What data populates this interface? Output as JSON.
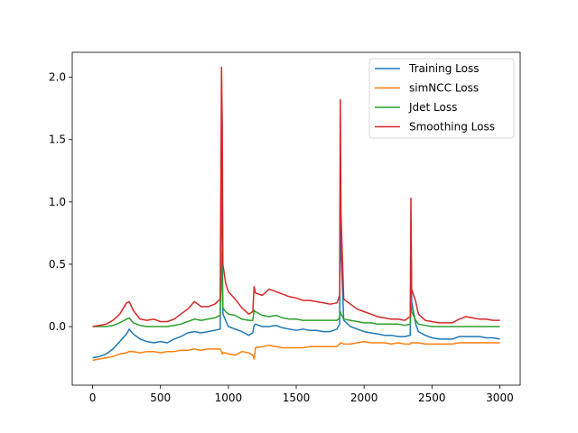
{
  "chart_data": {
    "type": "line",
    "title": "",
    "xlabel": "",
    "ylabel": "",
    "xlim": [
      -150,
      3150
    ],
    "ylim": [
      -0.47,
      2.2
    ],
    "xticks": [
      0,
      500,
      1000,
      1500,
      2000,
      2500,
      3000
    ],
    "xtick_labels": [
      "0",
      "500",
      "1000",
      "1500",
      "2000",
      "2500",
      "3000"
    ],
    "yticks": [
      0.0,
      0.5,
      1.0,
      1.5,
      2.0
    ],
    "ytick_labels": [
      "0.0",
      "0.5",
      "1.0",
      "1.5",
      "2.0"
    ],
    "grid": false,
    "legend_position": "upper-right",
    "x": [
      0,
      50,
      100,
      150,
      200,
      250,
      270,
      300,
      350,
      400,
      450,
      500,
      550,
      600,
      650,
      700,
      750,
      800,
      850,
      900,
      940,
      950,
      955,
      960,
      980,
      1000,
      1050,
      1100,
      1150,
      1180,
      1190,
      1200,
      1250,
      1300,
      1350,
      1400,
      1450,
      1500,
      1550,
      1600,
      1650,
      1700,
      1750,
      1800,
      1820,
      1825,
      1830,
      1850,
      1900,
      1950,
      2000,
      2050,
      2100,
      2150,
      2200,
      2250,
      2300,
      2340,
      2345,
      2350,
      2380,
      2400,
      2450,
      2500,
      2550,
      2600,
      2650,
      2700,
      2750,
      2800,
      2850,
      2900,
      2950,
      3000
    ],
    "series": [
      {
        "name": "Training Loss",
        "color": "#1f77b4",
        "values": [
          -0.25,
          -0.24,
          -0.22,
          -0.18,
          -0.12,
          -0.06,
          -0.02,
          -0.06,
          -0.1,
          -0.12,
          -0.13,
          -0.12,
          -0.13,
          -0.1,
          -0.08,
          -0.05,
          -0.04,
          -0.05,
          -0.04,
          -0.03,
          -0.02,
          1.45,
          0.7,
          0.1,
          0.05,
          0.0,
          -0.02,
          -0.04,
          -0.07,
          -0.05,
          0.01,
          0.02,
          0.0,
          0.0,
          0.01,
          -0.01,
          -0.02,
          -0.03,
          -0.02,
          -0.03,
          -0.03,
          -0.04,
          -0.04,
          -0.02,
          0.02,
          1.35,
          0.6,
          0.05,
          0.0,
          -0.02,
          -0.04,
          -0.05,
          -0.06,
          -0.07,
          -0.07,
          -0.08,
          -0.08,
          -0.07,
          0.75,
          0.2,
          0.02,
          -0.04,
          -0.07,
          -0.09,
          -0.1,
          -0.1,
          -0.1,
          -0.08,
          -0.08,
          -0.08,
          -0.08,
          -0.09,
          -0.09,
          -0.1
        ]
      },
      {
        "name": "simNCC Loss",
        "color": "#ff7f0e",
        "values": [
          -0.27,
          -0.26,
          -0.25,
          -0.24,
          -0.22,
          -0.21,
          -0.2,
          -0.2,
          -0.21,
          -0.2,
          -0.2,
          -0.21,
          -0.2,
          -0.2,
          -0.19,
          -0.19,
          -0.18,
          -0.19,
          -0.18,
          -0.18,
          -0.18,
          -0.2,
          -0.22,
          -0.21,
          -0.21,
          -0.22,
          -0.23,
          -0.2,
          -0.21,
          -0.23,
          -0.26,
          -0.17,
          -0.16,
          -0.15,
          -0.16,
          -0.17,
          -0.17,
          -0.17,
          -0.17,
          -0.16,
          -0.16,
          -0.16,
          -0.16,
          -0.16,
          -0.14,
          -0.13,
          -0.13,
          -0.14,
          -0.14,
          -0.13,
          -0.12,
          -0.13,
          -0.13,
          -0.13,
          -0.14,
          -0.13,
          -0.14,
          -0.14,
          -0.13,
          -0.13,
          -0.13,
          -0.13,
          -0.14,
          -0.14,
          -0.14,
          -0.14,
          -0.14,
          -0.13,
          -0.13,
          -0.13,
          -0.13,
          -0.13,
          -0.13,
          -0.13
        ]
      },
      {
        "name": "Jdet Loss",
        "color": "#2ca02c",
        "values": [
          0.0,
          0.0,
          0.0,
          0.01,
          0.03,
          0.06,
          0.07,
          0.03,
          0.01,
          0.0,
          0.0,
          0.0,
          0.0,
          0.01,
          0.02,
          0.04,
          0.06,
          0.05,
          0.06,
          0.07,
          0.09,
          0.6,
          0.3,
          0.15,
          0.12,
          0.1,
          0.09,
          0.06,
          0.05,
          0.05,
          0.13,
          0.12,
          0.09,
          0.08,
          0.09,
          0.07,
          0.06,
          0.06,
          0.05,
          0.05,
          0.05,
          0.05,
          0.05,
          0.05,
          0.07,
          0.12,
          0.1,
          0.06,
          0.05,
          0.04,
          0.03,
          0.03,
          0.02,
          0.02,
          0.02,
          0.02,
          0.01,
          0.02,
          0.2,
          0.12,
          0.05,
          0.02,
          0.01,
          0.0,
          0.0,
          0.0,
          0.0,
          0.0,
          0.0,
          0.0,
          0.0,
          0.0,
          0.0,
          0.0
        ]
      },
      {
        "name": "Smoothing Loss",
        "color": "#d62728",
        "values": [
          0.0,
          0.01,
          0.02,
          0.05,
          0.1,
          0.19,
          0.2,
          0.13,
          0.06,
          0.05,
          0.06,
          0.04,
          0.04,
          0.06,
          0.1,
          0.14,
          0.2,
          0.16,
          0.16,
          0.18,
          0.22,
          2.08,
          1.62,
          0.5,
          0.35,
          0.28,
          0.22,
          0.15,
          0.1,
          0.12,
          0.32,
          0.27,
          0.25,
          0.3,
          0.28,
          0.26,
          0.24,
          0.23,
          0.21,
          0.21,
          0.2,
          0.19,
          0.18,
          0.19,
          0.25,
          1.82,
          0.9,
          0.22,
          0.18,
          0.14,
          0.12,
          0.1,
          0.08,
          0.07,
          0.06,
          0.06,
          0.05,
          0.08,
          1.03,
          0.3,
          0.2,
          0.1,
          0.05,
          0.04,
          0.03,
          0.03,
          0.03,
          0.06,
          0.08,
          0.07,
          0.06,
          0.06,
          0.05,
          0.05
        ]
      }
    ]
  }
}
